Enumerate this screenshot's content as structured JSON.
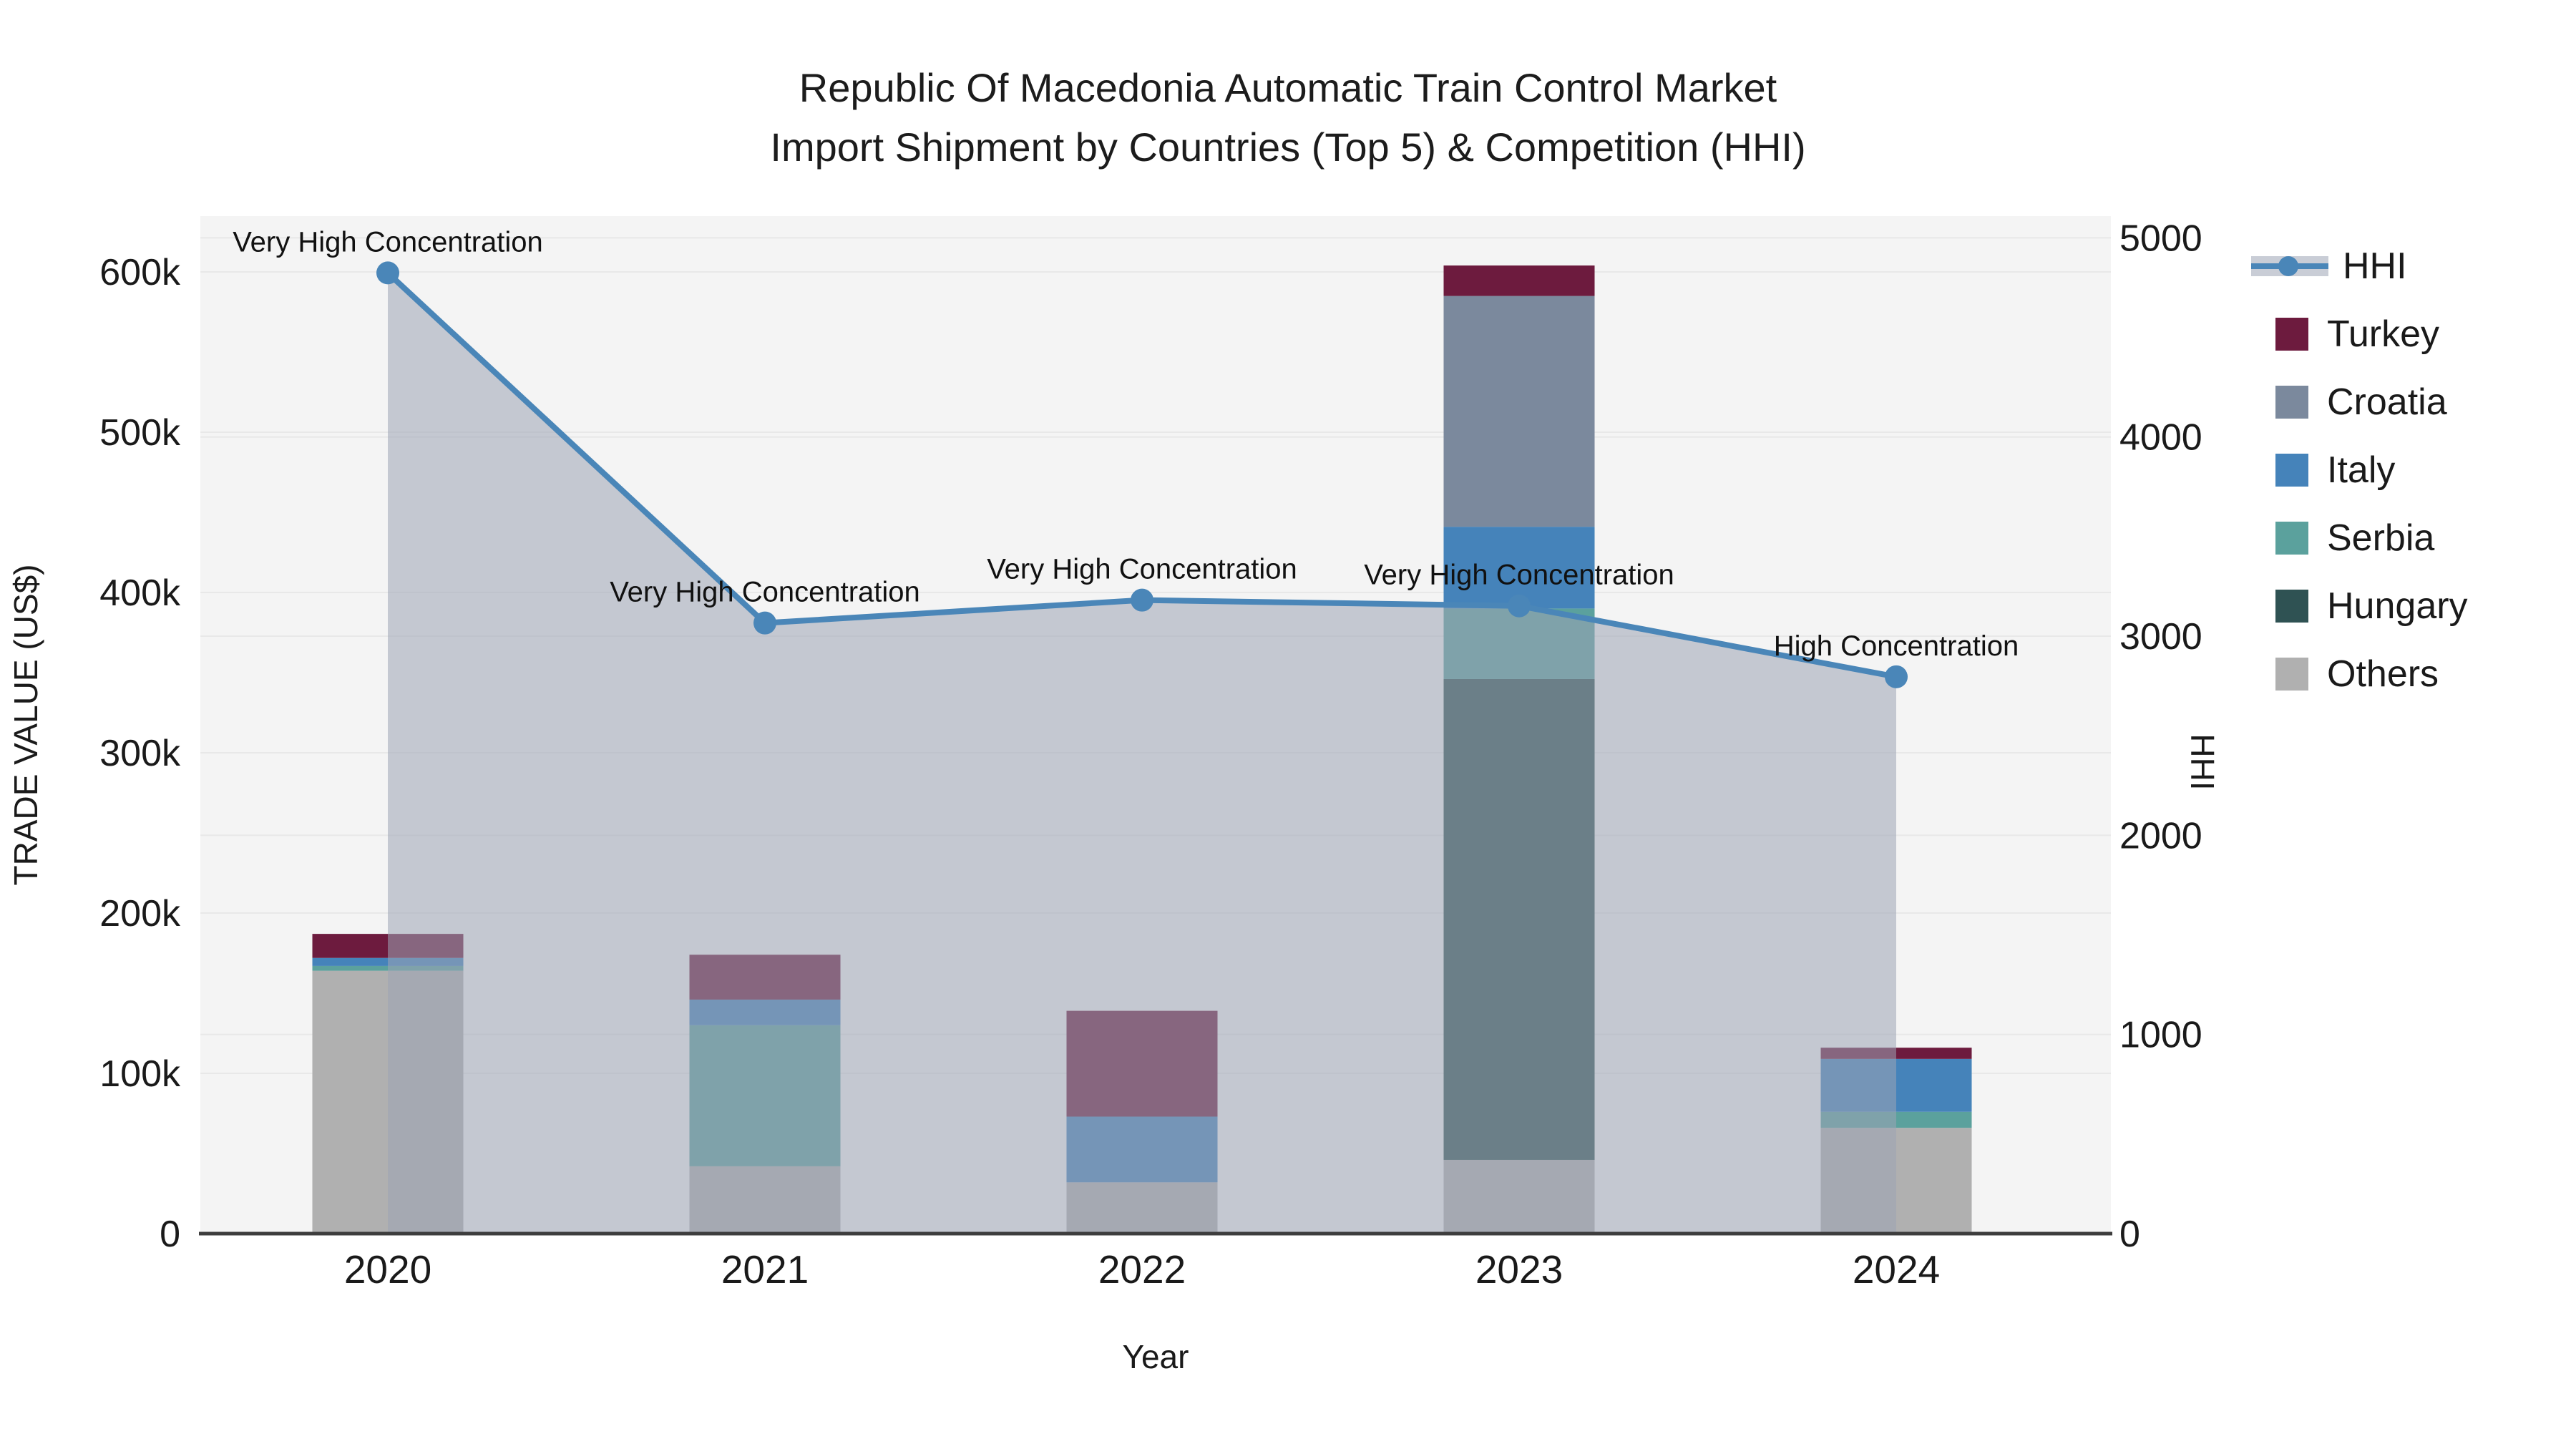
{
  "title": {
    "line1": "Republic Of Macedonia Automatic Train Control Market",
    "line2": "Import Shipment by Countries (Top 5) & Competition (HHI)"
  },
  "colors": {
    "background": "#ffffff",
    "plot_background": "#f4f4f4",
    "gridline": "#e8e8e8",
    "axis_line": "#3d3d3d",
    "hhi_line": "#4a86b8",
    "hhi_area_fill": "rgba(157,164,180,0.55)",
    "turkey": "#6d1b3e",
    "croatia": "#7b899d",
    "italy": "#4583ba",
    "serbia": "#5ba19d",
    "hungary": "#2f5253",
    "others": "#b0b0b0",
    "annotation_text": "#111111"
  },
  "legend": {
    "items": [
      {
        "label": "HHI",
        "type": "line",
        "color": "#4a86b8"
      },
      {
        "label": "Turkey",
        "type": "box",
        "color": "#6d1b3e"
      },
      {
        "label": "Croatia",
        "type": "box",
        "color": "#7b899d"
      },
      {
        "label": "Italy",
        "type": "box",
        "color": "#4583ba"
      },
      {
        "label": "Serbia",
        "type": "box",
        "color": "#5ba19d"
      },
      {
        "label": "Hungary",
        "type": "box",
        "color": "#2f5253"
      },
      {
        "label": "Others",
        "type": "box",
        "color": "#b0b0b0"
      }
    ]
  },
  "chart_data": {
    "type": "bar",
    "subtype": "stacked-bar-with-line",
    "categories": [
      "2020",
      "2021",
      "2022",
      "2023",
      "2024"
    ],
    "xlabel": "Year",
    "left_axis": {
      "label": "TRADE VALUE (US$)",
      "min": 0,
      "max": 600000,
      "tick_values": [
        0,
        100000,
        200000,
        300000,
        400000,
        500000,
        600000
      ],
      "tick_labels": [
        "0",
        "100k",
        "200k",
        "300k",
        "400k",
        "500k",
        "600k"
      ],
      "grid": true
    },
    "right_axis": {
      "label": "HHI",
      "min": 0,
      "max": 5000,
      "tick_values": [
        0,
        1000,
        2000,
        3000,
        4000,
        5000
      ],
      "tick_labels": [
        "0",
        "1000",
        "2000",
        "3000",
        "4000",
        "5000"
      ],
      "grid": true
    },
    "series": [
      {
        "name": "Turkey",
        "color_key": "turkey",
        "values": [
          15000,
          28000,
          66000,
          19000,
          7000
        ]
      },
      {
        "name": "Croatia",
        "color_key": "croatia",
        "values": [
          0,
          0,
          0,
          144000,
          0
        ]
      },
      {
        "name": "Italy",
        "color_key": "italy",
        "values": [
          5000,
          16000,
          41000,
          51000,
          33000
        ]
      },
      {
        "name": "Serbia",
        "color_key": "serbia",
        "values": [
          3000,
          88000,
          0,
          44000,
          10000
        ]
      },
      {
        "name": "Hungary",
        "color_key": "hungary",
        "values": [
          0,
          0,
          0,
          300000,
          0
        ]
      },
      {
        "name": "Others",
        "color_key": "others",
        "values": [
          164000,
          42000,
          32000,
          46000,
          66000
        ]
      }
    ],
    "bar_totals": [
      187000,
      174000,
      139000,
      604000,
      116000
    ],
    "line_series": {
      "name": "HHI",
      "axis": "right",
      "values": [
        4824,
        3066,
        3181,
        3152,
        2796
      ],
      "area_fill": true,
      "annotations": [
        "Very High Concentration",
        "Very High Concentration",
        "Very High Concentration",
        "Very High Concentration",
        "High Concentration"
      ]
    },
    "legend_position": "right"
  }
}
